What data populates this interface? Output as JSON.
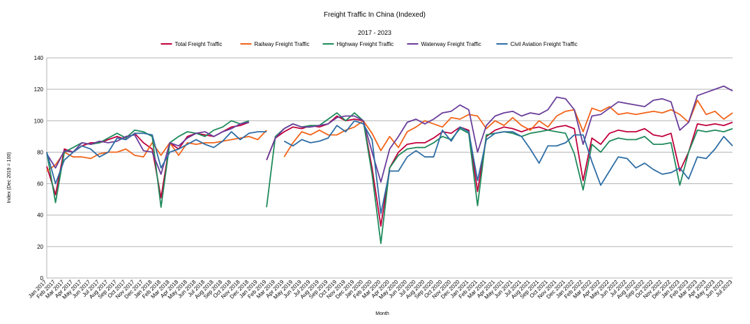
{
  "chart_data": {
    "type": "line",
    "title": "Freight Traffic In China (Indexed)",
    "subtitle": "2017 - 2023",
    "xlabel": "Month",
    "ylabel": "Index (Dec 2019 = 100)",
    "ylim": [
      0,
      140
    ],
    "yticks": [
      0,
      20,
      40,
      60,
      80,
      100,
      120,
      140
    ],
    "grid": true,
    "legend_position": "top",
    "categories": [
      "Jan 2017",
      "Feb 2017",
      "Mar 2017",
      "Apr 2017",
      "May 2017",
      "Jun 2017",
      "Jul 2017",
      "Aug 2017",
      "Sep 2017",
      "Oct 2017",
      "Nov 2017",
      "Dec 2017",
      "Jan 2018",
      "Feb 2018",
      "Mar 2018",
      "Apr 2018",
      "May 2018",
      "Jun 2018",
      "Jul 2018",
      "Aug 2018",
      "Sep 2018",
      "Oct 2018",
      "Nov 2018",
      "Dec 2018",
      "Jan 2019",
      "Feb 2019",
      "Mar 2019",
      "Apr 2019",
      "May 2019",
      "Jun 2019",
      "Jul 2019",
      "Aug 2019",
      "Sep 2019",
      "Oct 2019",
      "Nov 2019",
      "Dec 2019",
      "Jan 2020",
      "Feb 2020",
      "Mar 2020",
      "Apr 2020",
      "May 2020",
      "Jun 2020",
      "Jul 2020",
      "Aug 2020",
      "Sep 2020",
      "Oct 2020",
      "Nov 2020",
      "Dec 2020",
      "Jan 2021",
      "Feb 2021",
      "Mar 2021",
      "Apr 2021",
      "May 2021",
      "Jun 2021",
      "Jul 2021",
      "Aug 2021",
      "Sep 2021",
      "Oct 2021",
      "Nov 2021",
      "Dec 2021",
      "Jan 2022",
      "Feb 2022",
      "Mar 2022",
      "Apr 2022",
      "May 2022",
      "Jun 2022",
      "Jul 2022",
      "Aug 2022",
      "Sep 2022",
      "Oct 2022",
      "Nov 2022",
      "Dec 2022",
      "Jan 2023",
      "Feb 2023",
      "Mar 2023",
      "Apr 2023",
      "May 2023",
      "Jun 2023",
      "Jul 2023"
    ],
    "series": [
      {
        "name": "Total Freight Traffic",
        "color": "#c0003c",
        "values": [
          71,
          53,
          82,
          80,
          84,
          86,
          86,
          88,
          90,
          88,
          92,
          86,
          82,
          51,
          86,
          82,
          90,
          92,
          91,
          90,
          93,
          96,
          97,
          99,
          null,
          75,
          89,
          93,
          96,
          95,
          97,
          96,
          98,
          103,
          100,
          101,
          100,
          70,
          33,
          70,
          80,
          85,
          86,
          86,
          89,
          93,
          92,
          96,
          94,
          55,
          90,
          94,
          96,
          95,
          93,
          95,
          96,
          94,
          96,
          97,
          95,
          62,
          89,
          85,
          92,
          94,
          93,
          93,
          95,
          91,
          90,
          92,
          68,
          80,
          98,
          97,
          98,
          97,
          99
        ]
      },
      {
        "name": "Railway Freight Traffic",
        "color": "#f26419",
        "values": [
          68,
          72,
          80,
          77,
          77,
          76,
          79,
          80,
          80,
          82,
          78,
          77,
          86,
          78,
          86,
          78,
          86,
          85,
          86,
          86,
          87,
          88,
          89,
          90,
          88,
          94,
          null,
          77,
          86,
          93,
          91,
          94,
          91,
          91,
          94,
          96,
          100,
          92,
          81,
          90,
          83,
          93,
          96,
          100,
          98,
          96,
          102,
          101,
          104,
          103,
          95,
          100,
          97,
          102,
          97,
          94,
          100,
          96,
          103,
          106,
          107,
          93,
          108,
          106,
          109,
          104,
          105,
          104,
          105,
          106,
          105,
          107,
          104,
          99,
          113,
          104,
          106,
          101,
          105
        ]
      },
      {
        "name": "Highway Freight Traffic",
        "color": "#1f8a5b",
        "values": [
          80,
          48,
          80,
          83,
          86,
          85,
          86,
          89,
          92,
          89,
          94,
          93,
          90,
          45,
          86,
          90,
          93,
          92,
          90,
          94,
          96,
          100,
          98,
          100,
          null,
          45,
          90,
          95,
          98,
          96,
          97,
          97,
          101,
          105,
          100,
          105,
          100,
          66,
          22,
          70,
          78,
          82,
          83,
          83,
          86,
          90,
          88,
          95,
          92,
          46,
          91,
          92,
          93,
          92,
          90,
          92,
          93,
          94,
          93,
          92,
          79,
          56,
          85,
          80,
          87,
          89,
          88,
          88,
          90,
          85,
          85,
          86,
          59,
          80,
          94,
          93,
          94,
          93,
          95
        ]
      },
      {
        "name": "Waterway Freight Traffic",
        "color": "#6a3d9a",
        "values": [
          79,
          70,
          81,
          80,
          86,
          85,
          87,
          86,
          87,
          90,
          91,
          81,
          80,
          66,
          86,
          84,
          89,
          92,
          93,
          90,
          93,
          95,
          98,
          99,
          null,
          75,
          89,
          95,
          98,
          96,
          96,
          97,
          98,
          102,
          103,
          103,
          100,
          80,
          61,
          82,
          90,
          99,
          101,
          98,
          101,
          105,
          106,
          110,
          107,
          80,
          97,
          103,
          105,
          106,
          103,
          105,
          104,
          107,
          115,
          114,
          107,
          85,
          103,
          104,
          108,
          112,
          111,
          110,
          109,
          113,
          114,
          112,
          94,
          99,
          116,
          118,
          120,
          122,
          119
        ]
      },
      {
        "name": "Civil Aviation Freight Traffic",
        "color": "#2e6da4",
        "values": [
          80,
          60,
          75,
          80,
          84,
          82,
          77,
          80,
          89,
          88,
          92,
          92,
          91,
          70,
          80,
          82,
          85,
          88,
          85,
          83,
          87,
          93,
          88,
          92,
          93,
          93,
          null,
          87,
          84,
          88,
          86,
          87,
          89,
          97,
          93,
          100,
          98,
          88,
          41,
          68,
          68,
          77,
          81,
          77,
          77,
          94,
          87,
          96,
          93,
          62,
          88,
          92,
          93,
          93,
          90,
          82,
          73,
          84,
          84,
          86,
          91,
          91,
          74,
          59,
          68,
          77,
          76,
          70,
          73,
          69,
          66,
          67,
          70,
          63,
          77,
          76,
          82,
          90,
          84
        ]
      }
    ]
  }
}
